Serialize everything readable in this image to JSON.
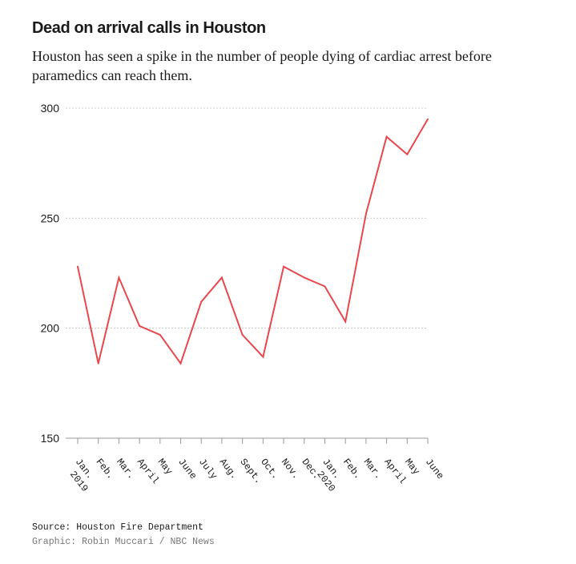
{
  "header": {
    "title": "Dead on arrival calls in Houston",
    "subtitle": "Houston has seen a spike in the number of people dying of cardiac arrest before paramedics can reach them."
  },
  "footer": {
    "source": "Source: Houston Fire Department",
    "credit": "Graphic: Robin Muccari / NBC News"
  },
  "colors": {
    "line": "#e8474d",
    "grid": "#cccccc",
    "axis": "#999999"
  },
  "chart_data": {
    "type": "line",
    "title": "Dead on arrival calls in Houston",
    "xlabel": "",
    "ylabel": "",
    "categories": [
      "Jan.",
      "Feb.",
      "Mar.",
      "April",
      "May",
      "June",
      "July",
      "Aug.",
      "Sept.",
      "Oct.",
      "Nov.",
      "Dec.",
      "Jan.",
      "Feb.",
      "Mar.",
      "April",
      "May",
      "June"
    ],
    "category_sublabels": [
      "2019",
      "",
      "",
      "",
      "",
      "",
      "",
      "",
      "",
      "",
      "",
      "",
      "2020",
      "",
      "",
      "",
      "",
      ""
    ],
    "series": [
      {
        "values": [
          228,
          184,
          223,
          201,
          197,
          184,
          212,
          223,
          197,
          187,
          228,
          223,
          219,
          203,
          252,
          287,
          279,
          295
        ]
      }
    ],
    "ylim": [
      150,
      300
    ],
    "yticks": [
      150,
      200,
      250,
      300
    ],
    "grid": true,
    "legend": "none"
  }
}
